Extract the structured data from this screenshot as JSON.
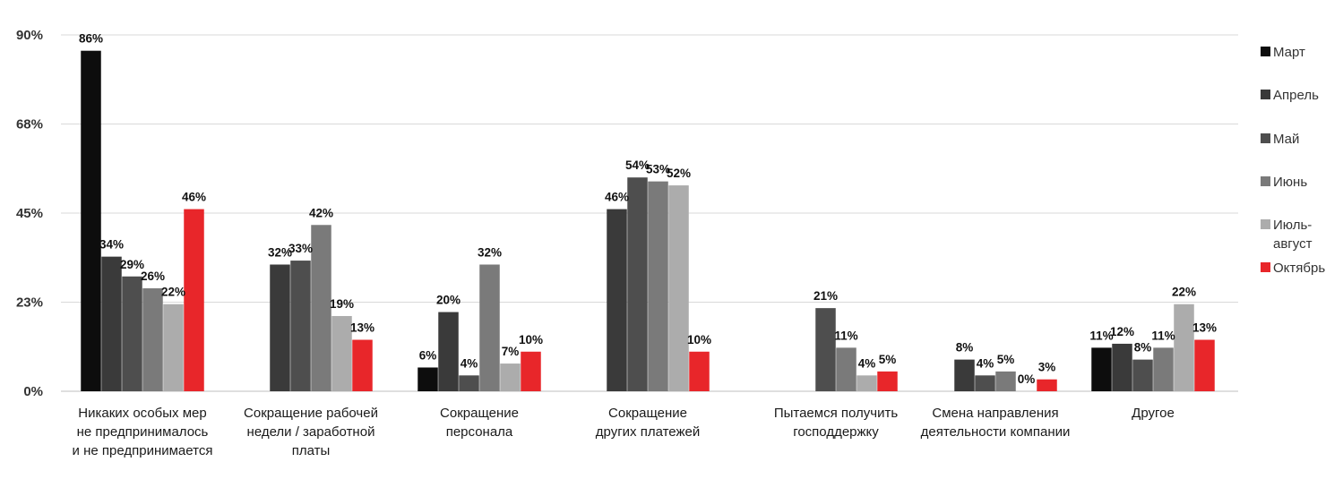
{
  "chart_data": {
    "type": "bar",
    "ylim": [
      0,
      90
    ],
    "y_ticks": [
      "0%",
      "23%",
      "45%",
      "68%",
      "90%"
    ],
    "y_tick_values": [
      0,
      22.5,
      45,
      67.5,
      90
    ],
    "grid": true,
    "legend_position": "right",
    "categories": [
      [
        "Никаких особых мер",
        "не предпринималось",
        "и не предпринимается"
      ],
      [
        "Сокращение рабочей",
        "недели / заработной",
        "платы"
      ],
      [
        "Сокращение",
        "персонала"
      ],
      [
        "Сокращение",
        "других платежей"
      ],
      [
        "Пытаемся получить",
        "господдержку"
      ],
      [
        "Смена направления",
        "деятельности компании"
      ],
      [
        "Другое"
      ]
    ],
    "series": [
      {
        "name": "Март",
        "color": "#0d0d0d",
        "values": [
          86,
          null,
          6,
          null,
          null,
          null,
          11
        ]
      },
      {
        "name": "Апрель",
        "color": "#3a3a3a",
        "values": [
          34,
          32,
          20,
          46,
          null,
          8,
          12
        ]
      },
      {
        "name": "Май",
        "color": "#4e4e4e",
        "values": [
          29,
          33,
          4,
          54,
          21,
          4,
          8
        ]
      },
      {
        "name": "Июнь",
        "color": "#7a7a7a",
        "values": [
          26,
          42,
          32,
          53,
          11,
          5,
          11
        ]
      },
      {
        "name": "Июль-август",
        "name_lines": [
          "Июль-",
          "август"
        ],
        "color": "#acacac",
        "values": [
          22,
          19,
          7,
          52,
          4,
          0,
          22
        ]
      },
      {
        "name": "Октябрь",
        "color": "#e8262a",
        "values": [
          46,
          13,
          10,
          10,
          5,
          3,
          13
        ]
      }
    ],
    "value_suffix": "%"
  }
}
